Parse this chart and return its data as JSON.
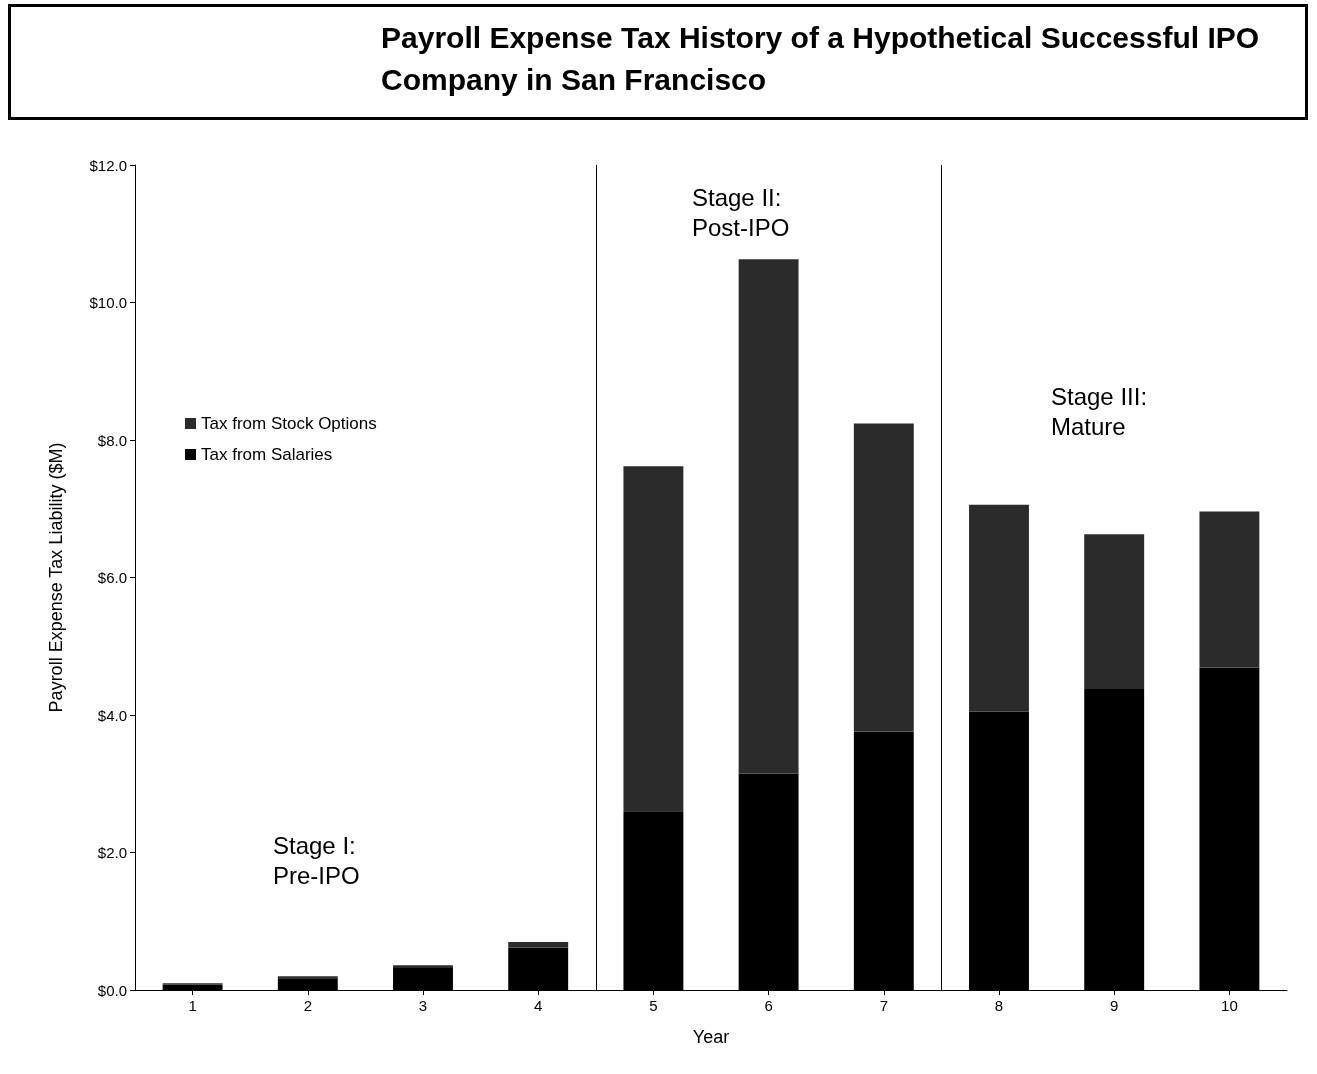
{
  "chart_data": {
    "type": "bar",
    "stacked": true,
    "title": "Payroll Expense Tax History of a Hypothetical Successful IPO Company in San Francisco",
    "xlabel": "Year",
    "ylabel": "Payroll Expense Tax Liability ($M)",
    "x": [
      1,
      2,
      3,
      4,
      5,
      6,
      7,
      8,
      9,
      10
    ],
    "xlim": [
      0.5,
      10.5
    ],
    "xticks": [
      1,
      2,
      3,
      4,
      5,
      6,
      7,
      8,
      9,
      10
    ],
    "ylim": [
      0,
      12
    ],
    "yticks": [
      {
        "value": 0,
        "label": "$0.0"
      },
      {
        "value": 2,
        "label": "$2.0"
      },
      {
        "value": 4,
        "label": "$4.0"
      },
      {
        "value": 6,
        "label": "$6.0"
      },
      {
        "value": 8,
        "label": "$8.0"
      },
      {
        "value": 10,
        "label": "$10.0"
      },
      {
        "value": 12,
        "label": "$12.0"
      }
    ],
    "series": [
      {
        "name": "Tax from Salaries",
        "color": "#000000",
        "values": [
          0.08,
          0.17,
          0.32,
          0.62,
          2.6,
          3.15,
          3.76,
          4.05,
          4.38,
          4.69
        ]
      },
      {
        "name": "Tax from Stock Options",
        "color": "#2b2b2b",
        "values": [
          0.02,
          0.03,
          0.04,
          0.08,
          5.02,
          7.48,
          4.48,
          3.01,
          2.25,
          2.27
        ]
      }
    ],
    "ref_lines": [
      {
        "axis": "x",
        "value": 4.5,
        "color": "#000000"
      },
      {
        "axis": "x",
        "value": 7.5,
        "color": "#000000"
      }
    ],
    "annotations": [
      "Stage I:\nPre-IPO",
      "Stage II:\nPost-IPO",
      "Stage III:\nMature"
    ],
    "grid": false,
    "legend": "left"
  }
}
